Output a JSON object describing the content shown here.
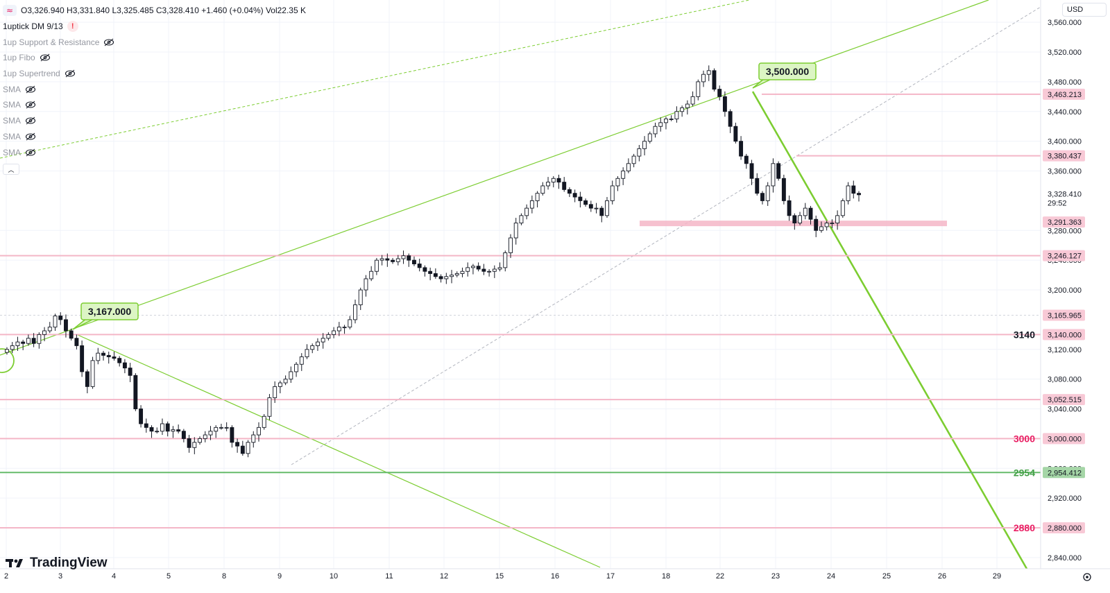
{
  "legend": {
    "symbol_icon": "≈",
    "ohlc": "O3,326.940 H3,331.840 L3,325.485 C3,328.410 +1.460 (+0.04%) Vol22.35 K",
    "indicator_main": "1uptick DM 9/13",
    "indicator_alert": "!",
    "hidden_indicators": [
      "1up Support & Resistance",
      "1up Fibo",
      "1up Supertrend",
      "SMA",
      "SMA",
      "SMA",
      "SMA",
      "SMA"
    ],
    "collapse_icon": "chevron-up-icon"
  },
  "currency": "USD",
  "branding": "TradingView",
  "colors": {
    "up_accent": "#7ccd31",
    "level_pink": "#f4b6c7",
    "label_pink_text": "#e91e63",
    "green_level": "#66bb6a",
    "candle": "#131722",
    "grid": "#f0f3fa"
  },
  "chart_data": {
    "type": "candlestick",
    "y_axis": {
      "ticks": [
        "3,560.000",
        "3,520.000",
        "3,480.000",
        "3,440.000",
        "3,400.000",
        "3,360.000",
        "3,280.000",
        "3,240.000",
        "3,200.000",
        "3,120.000",
        "3,080.000",
        "3,040.000",
        "2,960.000",
        "2,920.000",
        "2,880.000",
        "2,840.000"
      ],
      "range": [
        2825,
        3590
      ]
    },
    "x_axis": {
      "ticks": [
        "2",
        "3",
        "4",
        "5",
        "8",
        "9",
        "10",
        "11",
        "12",
        "15",
        "16",
        "17",
        "18",
        "22",
        "23",
        "24",
        "25",
        "26",
        "29"
      ]
    },
    "current_price": {
      "value": "3,328.410",
      "countdown": "29:52"
    },
    "horizontal_levels": [
      {
        "price": 3463.213,
        "label": "3,463.213"
      },
      {
        "price": 3380.437,
        "label": "3,380.437"
      },
      {
        "price": 3291.363,
        "label": "3,291.363"
      },
      {
        "price": 3246.127,
        "label": "3,246.127"
      },
      {
        "price": 3165.965,
        "label": "3,165.965"
      },
      {
        "price": 3140.0,
        "label": "3,140.000",
        "tag": "3140"
      },
      {
        "price": 3052.515,
        "label": "3,052.515"
      },
      {
        "price": 3000.0,
        "label": "3,000.000",
        "tag": "3000"
      },
      {
        "price": 2954.412,
        "label": "2,954.412",
        "tag": "2954"
      },
      {
        "price": 2880.0,
        "label": "2,880.000",
        "tag": "2880"
      }
    ],
    "peak_labels": [
      {
        "x": "3",
        "price": 3167.0,
        "text": "3,167.000"
      },
      {
        "x": "22",
        "price": 3500.0,
        "text": "3,500.000"
      }
    ],
    "close_series": [
      3120,
      3125,
      3130,
      3128,
      3135,
      3128,
      3140,
      3145,
      3150,
      3165,
      3160,
      3145,
      3135,
      3125,
      3090,
      3070,
      3105,
      3115,
      3112,
      3110,
      3108,
      3102,
      3095,
      3085,
      3040,
      3020,
      3015,
      3010,
      3010,
      3020,
      3010,
      3012,
      3010,
      3000,
      2988,
      2995,
      3000,
      3005,
      3010,
      3015,
      3015,
      3015,
      2995,
      2990,
      2980,
      2995,
      3005,
      3015,
      3030,
      3055,
      3070,
      3075,
      3080,
      3090,
      3100,
      3110,
      3120,
      3125,
      3130,
      3135,
      3140,
      3145,
      3150,
      3150,
      3160,
      3180,
      3200,
      3215,
      3225,
      3240,
      3242,
      3240,
      3238,
      3242,
      3246,
      3240,
      3235,
      3230,
      3225,
      3222,
      3218,
      3215,
      3218,
      3220,
      3222,
      3225,
      3230,
      3232,
      3228,
      3225,
      3225,
      3228,
      3230,
      3250,
      3270,
      3290,
      3300,
      3310,
      3320,
      3330,
      3340,
      3345,
      3350,
      3345,
      3335,
      3330,
      3325,
      3320,
      3315,
      3310,
      3310,
      3300,
      3320,
      3340,
      3350,
      3360,
      3370,
      3380,
      3390,
      3400,
      3410,
      3420,
      3425,
      3430,
      3430,
      3440,
      3445,
      3450,
      3460,
      3480,
      3490,
      3495,
      3470,
      3460,
      3440,
      3420,
      3400,
      3380,
      3370,
      3350,
      3330,
      3320,
      3340,
      3370,
      3350,
      3320,
      3300,
      3290,
      3300,
      3310,
      3295,
      3280,
      3285,
      3290,
      3290,
      3300,
      3320,
      3340,
      3330,
      3328
    ]
  }
}
